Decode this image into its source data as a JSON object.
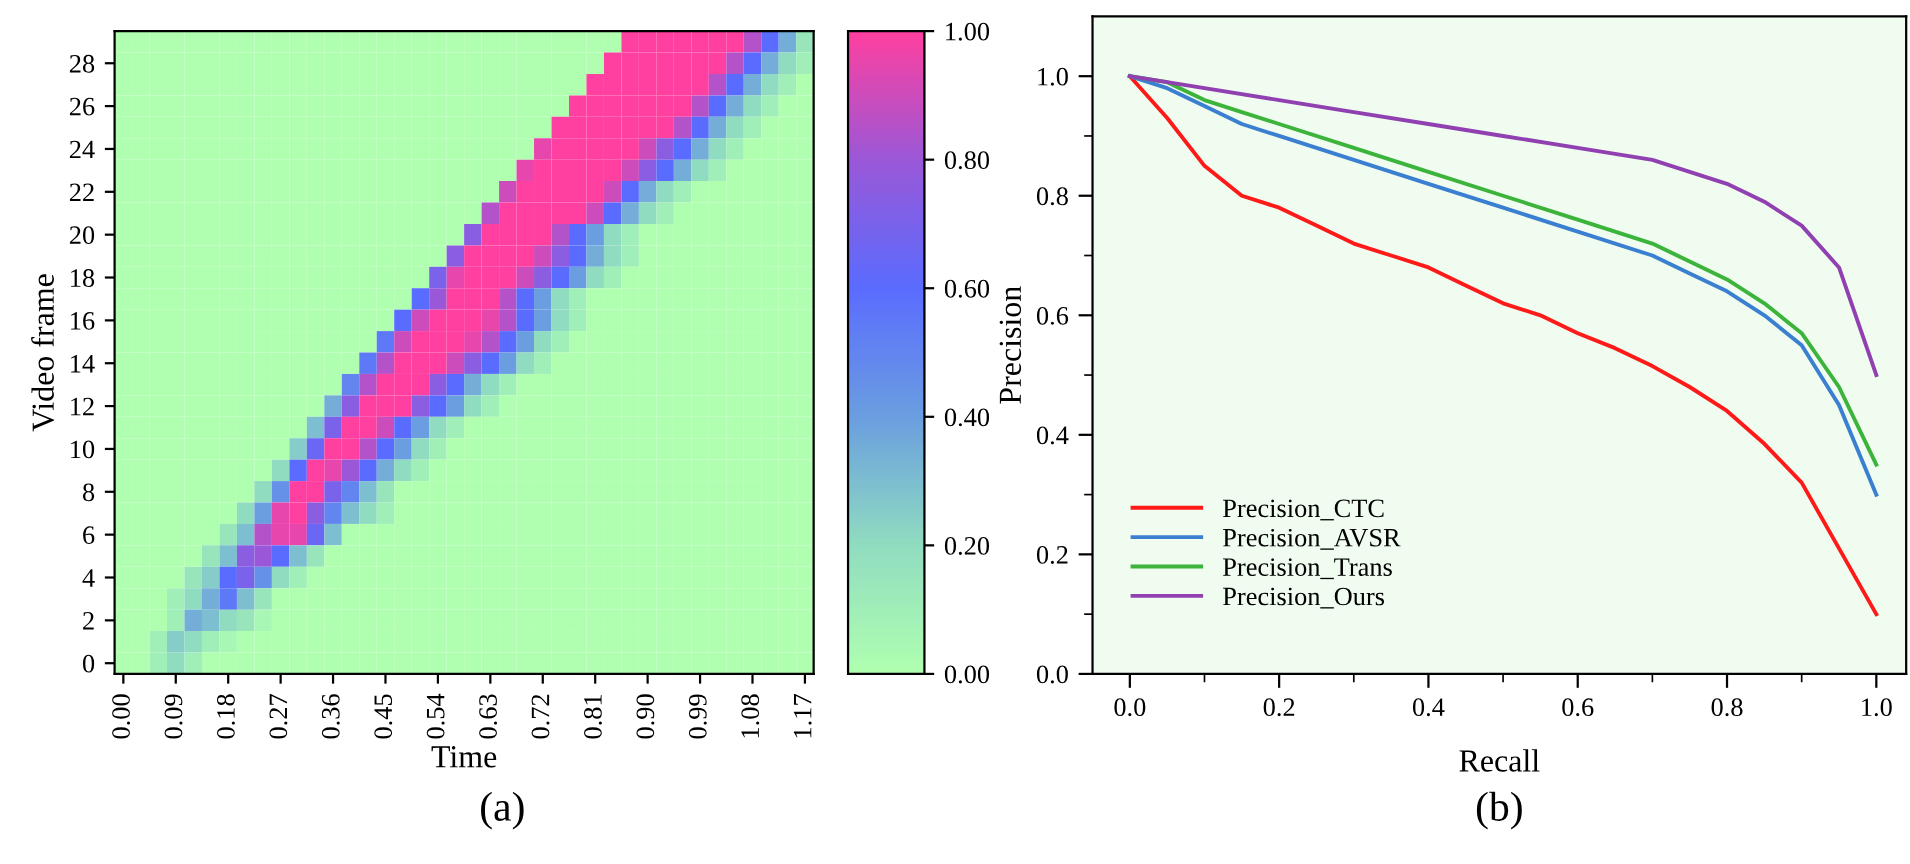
{
  "chart_data": [
    {
      "type": "heatmap",
      "xlabel": "Time",
      "ylabel": "Video frame",
      "annotations": [
        "(a)"
      ],
      "categories": [
        "0.00",
        null,
        null,
        "0.09",
        null,
        null,
        "0.18",
        null,
        null,
        "0.27",
        null,
        null,
        "0.36",
        null,
        null,
        "0.45",
        null,
        null,
        "0.54",
        null,
        null,
        "0.63",
        null,
        null,
        "0.72",
        null,
        null,
        "0.81",
        null,
        null,
        "0.90",
        null,
        null,
        "0.99",
        null,
        null,
        "1.08",
        null,
        null,
        "1.17"
      ],
      "y_categories": [
        null,
        "28",
        null,
        "26",
        null,
        "24",
        null,
        "22",
        null,
        "20",
        null,
        "18",
        null,
        "16",
        null,
        "14",
        null,
        "12",
        null,
        "10",
        null,
        "8",
        null,
        "6",
        null,
        "4",
        null,
        "2",
        null,
        "0"
      ],
      "colors": [
        "#b0ffb0",
        "#90dcc0",
        "#6a9ee0",
        "#5a6cff",
        "#9a58d8",
        "#ff40a0"
      ],
      "clim": [
        0,
        1
      ],
      "cticks": [
        {
          "value": 0,
          "label": "0.00"
        },
        {
          "value": 0.2,
          "label": "0.20"
        },
        {
          "value": 0.4,
          "label": "0.40"
        },
        {
          "value": 0.6,
          "label": "0.60"
        },
        {
          "value": 0.8,
          "label": "0.80"
        },
        {
          "value": 1,
          "label": "1.00"
        }
      ],
      "cells": [
        [
          0,
          0,
          0,
          0,
          0,
          0,
          0,
          0,
          0,
          0,
          0,
          0,
          0,
          0,
          0,
          0,
          0,
          0,
          0,
          0,
          0,
          0,
          0,
          0,
          0,
          0,
          0,
          0,
          0,
          1,
          1,
          1,
          1,
          1,
          1,
          1,
          0.85,
          0.6,
          0.35,
          0.15
        ],
        [
          0,
          0,
          0,
          0,
          0,
          0,
          0,
          0,
          0,
          0,
          0,
          0,
          0,
          0,
          0,
          0,
          0,
          0,
          0,
          0,
          0,
          0,
          0,
          0,
          0,
          0,
          0,
          0,
          1,
          1,
          1,
          1,
          1,
          1,
          1,
          0.85,
          0.6,
          0.35,
          0.2,
          0.1
        ],
        [
          0,
          0,
          0,
          0,
          0,
          0,
          0,
          0,
          0,
          0,
          0,
          0,
          0,
          0,
          0,
          0,
          0,
          0,
          0,
          0,
          0,
          0,
          0,
          0,
          0,
          0,
          0,
          1,
          1,
          1,
          1,
          1,
          1,
          1,
          0.85,
          0.6,
          0.35,
          0.2,
          0.1,
          0
        ],
        [
          0,
          0,
          0,
          0,
          0,
          0,
          0,
          0,
          0,
          0,
          0,
          0,
          0,
          0,
          0,
          0,
          0,
          0,
          0,
          0,
          0,
          0,
          0,
          0,
          0,
          0,
          1,
          1,
          1,
          1,
          1,
          1,
          1,
          0.85,
          0.6,
          0.35,
          0.2,
          0.1,
          0,
          0
        ],
        [
          0,
          0,
          0,
          0,
          0,
          0,
          0,
          0,
          0,
          0,
          0,
          0,
          0,
          0,
          0,
          0,
          0,
          0,
          0,
          0,
          0,
          0,
          0,
          0,
          0,
          1,
          1,
          1,
          1,
          1,
          1,
          1,
          0.85,
          0.6,
          0.35,
          0.2,
          0.1,
          0,
          0,
          0
        ],
        [
          0,
          0,
          0,
          0,
          0,
          0,
          0,
          0,
          0,
          0,
          0,
          0,
          0,
          0,
          0,
          0,
          0,
          0,
          0,
          0,
          0,
          0,
          0,
          0,
          0.95,
          1,
          1,
          1,
          1,
          1,
          0.9,
          0.75,
          0.6,
          0.35,
          0.2,
          0.1,
          0,
          0,
          0,
          0
        ],
        [
          0,
          0,
          0,
          0,
          0,
          0,
          0,
          0,
          0,
          0,
          0,
          0,
          0,
          0,
          0,
          0,
          0,
          0,
          0,
          0,
          0,
          0,
          0,
          0.95,
          1,
          1,
          1,
          1,
          1,
          0.9,
          0.75,
          0.6,
          0.35,
          0.2,
          0.1,
          0,
          0,
          0,
          0,
          0
        ],
        [
          0,
          0,
          0,
          0,
          0,
          0,
          0,
          0,
          0,
          0,
          0,
          0,
          0,
          0,
          0,
          0,
          0,
          0,
          0,
          0,
          0,
          0,
          0.9,
          1,
          1,
          1,
          1,
          1,
          0.9,
          0.6,
          0.35,
          0.2,
          0.1,
          0,
          0,
          0,
          0,
          0,
          0,
          0
        ],
        [
          0,
          0,
          0,
          0,
          0,
          0,
          0,
          0,
          0,
          0,
          0,
          0,
          0,
          0,
          0,
          0,
          0,
          0,
          0,
          0,
          0,
          0.85,
          1,
          1,
          1,
          1,
          1,
          0.9,
          0.6,
          0.35,
          0.2,
          0.1,
          0,
          0,
          0,
          0,
          0,
          0,
          0,
          0
        ],
        [
          0,
          0,
          0,
          0,
          0,
          0,
          0,
          0,
          0,
          0,
          0,
          0,
          0,
          0,
          0,
          0,
          0,
          0,
          0,
          0,
          0.75,
          1,
          1,
          1,
          1,
          0.85,
          0.6,
          0.4,
          0.2,
          0.1,
          0,
          0,
          0,
          0,
          0,
          0,
          0,
          0,
          0,
          0
        ],
        [
          0,
          0,
          0,
          0,
          0,
          0,
          0,
          0,
          0,
          0,
          0,
          0,
          0,
          0,
          0,
          0,
          0,
          0,
          0,
          0.75,
          1,
          1,
          1,
          1,
          0.9,
          0.75,
          0.6,
          0.35,
          0.2,
          0.1,
          0,
          0,
          0,
          0,
          0,
          0,
          0,
          0,
          0,
          0
        ],
        [
          0,
          0,
          0,
          0,
          0,
          0,
          0,
          0,
          0,
          0,
          0,
          0,
          0,
          0,
          0,
          0,
          0,
          0,
          0.7,
          0.95,
          1,
          1,
          1,
          0.9,
          0.75,
          0.6,
          0.4,
          0.2,
          0.1,
          0,
          0,
          0,
          0,
          0,
          0,
          0,
          0,
          0,
          0,
          0
        ],
        [
          0,
          0,
          0,
          0,
          0,
          0,
          0,
          0,
          0,
          0,
          0,
          0,
          0,
          0,
          0,
          0,
          0,
          0.6,
          0.8,
          1,
          1,
          1,
          0.85,
          0.6,
          0.4,
          0.2,
          0.1,
          0,
          0,
          0,
          0,
          0,
          0,
          0,
          0,
          0,
          0,
          0,
          0,
          0
        ],
        [
          0,
          0,
          0,
          0,
          0,
          0,
          0,
          0,
          0,
          0,
          0,
          0,
          0,
          0,
          0,
          0,
          0.6,
          0.9,
          1,
          1,
          1,
          0.95,
          0.85,
          0.6,
          0.4,
          0.2,
          0.1,
          0,
          0,
          0,
          0,
          0,
          0,
          0,
          0,
          0,
          0,
          0,
          0,
          0
        ],
        [
          0,
          0,
          0,
          0,
          0,
          0,
          0,
          0,
          0,
          0,
          0,
          0,
          0,
          0,
          0,
          0.55,
          0.9,
          1,
          1,
          1,
          0.95,
          0.85,
          0.6,
          0.4,
          0.2,
          0.1,
          0,
          0,
          0,
          0,
          0,
          0,
          0,
          0,
          0,
          0,
          0,
          0,
          0,
          0
        ],
        [
          0,
          0,
          0,
          0,
          0,
          0,
          0,
          0,
          0,
          0,
          0,
          0,
          0,
          0,
          0.55,
          0.85,
          1,
          1,
          1,
          0.9,
          0.75,
          0.6,
          0.4,
          0.2,
          0.1,
          0,
          0,
          0,
          0,
          0,
          0,
          0,
          0,
          0,
          0,
          0,
          0,
          0,
          0,
          0
        ],
        [
          0,
          0,
          0,
          0,
          0,
          0,
          0,
          0,
          0,
          0,
          0,
          0,
          0,
          0.5,
          0.85,
          1,
          1,
          1,
          0.75,
          0.6,
          0.35,
          0.2,
          0.1,
          0,
          0,
          0,
          0,
          0,
          0,
          0,
          0,
          0,
          0,
          0,
          0,
          0,
          0,
          0,
          0,
          0
        ],
        [
          0,
          0,
          0,
          0,
          0,
          0,
          0,
          0,
          0,
          0,
          0,
          0,
          0.35,
          0.75,
          1,
          1,
          1,
          0.75,
          0.6,
          0.4,
          0.2,
          0.1,
          0,
          0,
          0,
          0,
          0,
          0,
          0,
          0,
          0,
          0,
          0,
          0,
          0,
          0,
          0,
          0,
          0,
          0
        ],
        [
          0,
          0,
          0,
          0,
          0,
          0,
          0,
          0,
          0,
          0,
          0,
          0.3,
          0.7,
          1,
          1,
          0.9,
          0.6,
          0.4,
          0.2,
          0.1,
          0,
          0,
          0,
          0,
          0,
          0,
          0,
          0,
          0,
          0,
          0,
          0,
          0,
          0,
          0,
          0,
          0,
          0,
          0,
          0
        ],
        [
          0,
          0,
          0,
          0,
          0,
          0,
          0,
          0,
          0,
          0,
          0.25,
          0.65,
          1,
          1,
          0.85,
          0.6,
          0.4,
          0.2,
          0.1,
          0,
          0,
          0,
          0,
          0,
          0,
          0,
          0,
          0,
          0,
          0,
          0,
          0,
          0,
          0,
          0,
          0,
          0,
          0,
          0,
          0
        ],
        [
          0,
          0,
          0,
          0,
          0,
          0,
          0,
          0,
          0,
          0.2,
          0.6,
          1,
          0.95,
          0.8,
          0.6,
          0.35,
          0.2,
          0.1,
          0,
          0,
          0,
          0,
          0,
          0,
          0,
          0,
          0,
          0,
          0,
          0,
          0,
          0,
          0,
          0,
          0,
          0,
          0,
          0,
          0,
          0
        ],
        [
          0,
          0,
          0,
          0,
          0,
          0,
          0,
          0,
          0.2,
          0.45,
          1,
          1,
          0.7,
          0.5,
          0.3,
          0.15,
          0,
          0,
          0,
          0,
          0,
          0,
          0,
          0,
          0,
          0,
          0,
          0,
          0,
          0,
          0,
          0,
          0,
          0,
          0,
          0,
          0,
          0,
          0,
          0
        ],
        [
          0,
          0,
          0,
          0,
          0,
          0,
          0,
          0.2,
          0.4,
          0.95,
          1,
          0.75,
          0.5,
          0.3,
          0.2,
          0.1,
          0,
          0,
          0,
          0,
          0,
          0,
          0,
          0,
          0,
          0,
          0,
          0,
          0,
          0,
          0,
          0,
          0,
          0,
          0,
          0,
          0,
          0,
          0,
          0
        ],
        [
          0,
          0,
          0,
          0,
          0,
          0,
          0.15,
          0.3,
          0.85,
          0.95,
          0.95,
          0.65,
          0.3,
          0,
          0,
          0,
          0,
          0,
          0,
          0,
          0,
          0,
          0,
          0,
          0,
          0,
          0,
          0,
          0,
          0,
          0,
          0,
          0,
          0,
          0,
          0,
          0,
          0,
          0,
          0
        ],
        [
          0,
          0,
          0,
          0,
          0,
          0.15,
          0.3,
          0.75,
          0.8,
          0.6,
          0.3,
          0.15,
          0,
          0,
          0,
          0,
          0,
          0,
          0,
          0,
          0,
          0,
          0,
          0,
          0,
          0,
          0,
          0,
          0,
          0,
          0,
          0,
          0,
          0,
          0,
          0,
          0,
          0,
          0,
          0
        ],
        [
          0,
          0,
          0,
          0,
          0.15,
          0.25,
          0.6,
          0.7,
          0.45,
          0.2,
          0.1,
          0,
          0,
          0,
          0,
          0,
          0,
          0,
          0,
          0,
          0,
          0,
          0,
          0,
          0,
          0,
          0,
          0,
          0,
          0,
          0,
          0,
          0,
          0,
          0,
          0,
          0,
          0,
          0,
          0
        ],
        [
          0,
          0,
          0,
          0.1,
          0.2,
          0.35,
          0.55,
          0.3,
          0.15,
          0,
          0,
          0,
          0,
          0,
          0,
          0,
          0,
          0,
          0,
          0,
          0,
          0,
          0,
          0,
          0,
          0,
          0,
          0,
          0,
          0,
          0,
          0,
          0,
          0,
          0,
          0,
          0,
          0,
          0,
          0
        ],
        [
          0,
          0,
          0,
          0.1,
          0.35,
          0.3,
          0.2,
          0.15,
          0.05,
          0,
          0,
          0,
          0,
          0,
          0,
          0,
          0,
          0,
          0,
          0,
          0,
          0,
          0,
          0,
          0,
          0,
          0,
          0,
          0,
          0,
          0,
          0,
          0,
          0,
          0,
          0,
          0,
          0,
          0,
          0
        ],
        [
          0,
          0,
          0.1,
          0.25,
          0.2,
          0.1,
          0.05,
          0,
          0,
          0,
          0,
          0,
          0,
          0,
          0,
          0,
          0,
          0,
          0,
          0,
          0,
          0,
          0,
          0,
          0,
          0,
          0,
          0,
          0,
          0,
          0,
          0,
          0,
          0,
          0,
          0,
          0,
          0,
          0,
          0
        ],
        [
          0,
          0,
          0.1,
          0.2,
          0.1,
          0,
          0,
          0,
          0,
          0,
          0,
          0,
          0,
          0,
          0,
          0,
          0,
          0,
          0,
          0,
          0,
          0,
          0,
          0,
          0,
          0,
          0,
          0,
          0,
          0,
          0,
          0,
          0,
          0,
          0,
          0,
          0,
          0,
          0,
          0
        ]
      ]
    },
    {
      "type": "line",
      "xlabel": "Recall",
      "ylabel": "Precision",
      "annotations": [
        "(b)"
      ],
      "xlim": [
        -0.05,
        1.04
      ],
      "ylim": [
        0,
        1.1
      ],
      "xticks": [
        {
          "value": 0,
          "label": "0.0"
        },
        {
          "value": 0.1,
          "label": null
        },
        {
          "value": 0.2,
          "label": "0.2"
        },
        {
          "value": 0.3,
          "label": null
        },
        {
          "value": 0.4,
          "label": "0.4"
        },
        {
          "value": 0.5,
          "label": null
        },
        {
          "value": 0.6,
          "label": "0.6"
        },
        {
          "value": 0.7,
          "label": null
        },
        {
          "value": 0.8,
          "label": "0.8"
        },
        {
          "value": 0.9,
          "label": null
        },
        {
          "value": 1,
          "label": "1.0"
        }
      ],
      "yticks": [
        {
          "value": 0,
          "label": "0.0"
        },
        {
          "value": 0.1,
          "label": null
        },
        {
          "value": 0.2,
          "label": "0.2"
        },
        {
          "value": 0.3,
          "label": null
        },
        {
          "value": 0.4,
          "label": "0.4"
        },
        {
          "value": 0.5,
          "label": null
        },
        {
          "value": 0.6,
          "label": "0.6"
        },
        {
          "value": 0.7,
          "label": null
        },
        {
          "value": 0.8,
          "label": "0.8"
        },
        {
          "value": 0.9,
          "label": null
        },
        {
          "value": 1,
          "label": "1.0"
        }
      ],
      "legend": "bottom left",
      "line_style": "solid",
      "series": [
        {
          "name": "Precision_CTC",
          "color": "#ff1a1a",
          "x": [
            0,
            0.05,
            0.1,
            0.15,
            0.2,
            0.25,
            0.3,
            0.35,
            0.4,
            0.45,
            0.5,
            0.55,
            0.6,
            0.65,
            0.7,
            0.75,
            0.8,
            0.85,
            0.9,
            0.95,
            1.0
          ],
          "values": [
            1.0,
            0.93,
            0.85,
            0.8,
            0.78,
            0.75,
            0.72,
            0.7,
            0.68,
            0.65,
            0.62,
            0.6,
            0.57,
            0.545,
            0.515,
            0.48,
            0.44,
            0.385,
            0.32,
            0.21,
            0.1
          ]
        },
        {
          "name": "Precision_AVSR",
          "color": "#3a7fd0",
          "x": [
            0,
            0.05,
            0.1,
            0.15,
            0.2,
            0.3,
            0.4,
            0.5,
            0.6,
            0.7,
            0.75,
            0.8,
            0.85,
            0.9,
            0.95,
            1.0
          ],
          "values": [
            1.0,
            0.98,
            0.95,
            0.92,
            0.9,
            0.86,
            0.82,
            0.78,
            0.74,
            0.7,
            0.67,
            0.64,
            0.6,
            0.55,
            0.45,
            0.3
          ]
        },
        {
          "name": "Precision_Trans",
          "color": "#3cb43c",
          "x": [
            0,
            0.05,
            0.1,
            0.15,
            0.2,
            0.3,
            0.4,
            0.5,
            0.6,
            0.7,
            0.75,
            0.8,
            0.85,
            0.9,
            0.95,
            1.0
          ],
          "values": [
            1.0,
            0.99,
            0.96,
            0.94,
            0.92,
            0.88,
            0.84,
            0.8,
            0.76,
            0.72,
            0.69,
            0.66,
            0.62,
            0.57,
            0.48,
            0.35
          ]
        },
        {
          "name": "Precision_Ours",
          "color": "#9040b0",
          "x": [
            0,
            0.1,
            0.2,
            0.3,
            0.4,
            0.5,
            0.6,
            0.7,
            0.75,
            0.8,
            0.85,
            0.9,
            0.95,
            1.0
          ],
          "values": [
            1.0,
            0.98,
            0.96,
            0.94,
            0.92,
            0.9,
            0.88,
            0.86,
            0.84,
            0.82,
            0.79,
            0.75,
            0.68,
            0.5
          ]
        }
      ]
    }
  ]
}
